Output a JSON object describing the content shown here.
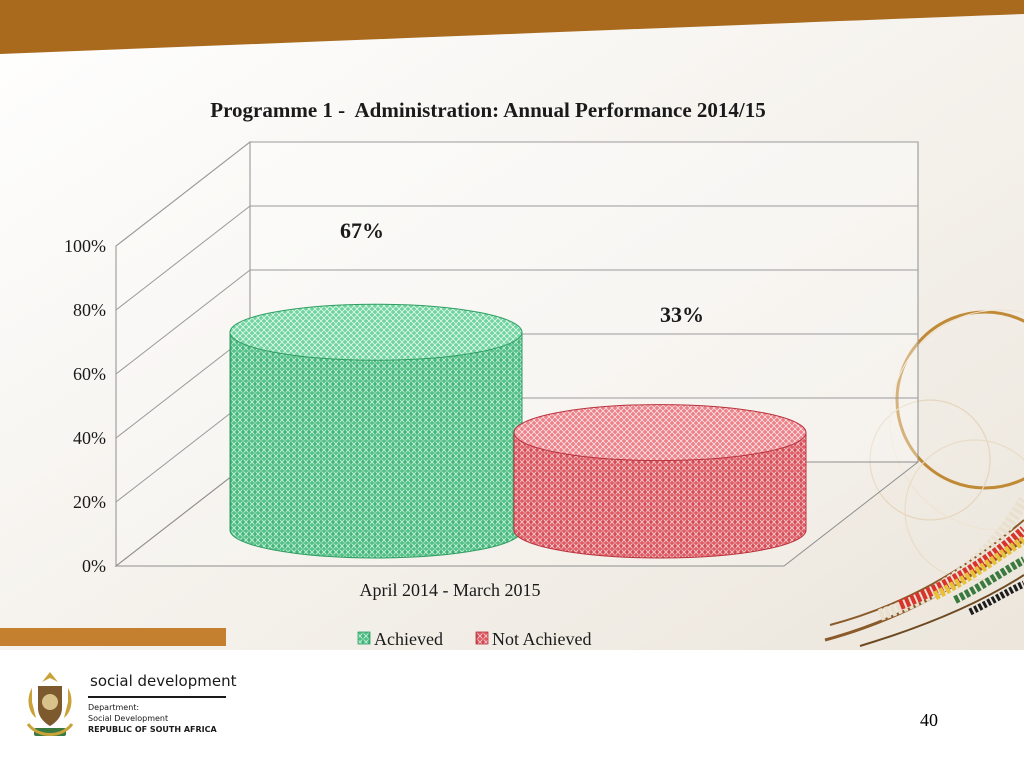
{
  "chart_data": {
    "type": "bar",
    "style": "3d-cylinder",
    "title": "Programme 1 -  Administration: Annual Performance 2014/15",
    "categories": [
      "April 2014 - March 2015"
    ],
    "series": [
      {
        "name": "Achieved",
        "values": [
          67
        ],
        "label": "67%",
        "color": "#3cb371"
      },
      {
        "name": "Not Achieved",
        "values": [
          33
        ],
        "label": "33%",
        "color": "#dc3c46"
      }
    ],
    "yticks": [
      "0%",
      "20%",
      "40%",
      "60%",
      "80%",
      "100%"
    ],
    "ylim": [
      0,
      100
    ],
    "grid": true,
    "legend": "bottom"
  },
  "colors": {
    "top_band": "#a96a1e",
    "accent_bar": "#c47f2f",
    "background": "#f6f3ee"
  },
  "footer": {
    "brand": "social development",
    "dept_line1": "Department:",
    "dept_line2": "Social Development",
    "dept_line3": "REPUBLIC OF SOUTH AFRICA",
    "page_number": "40"
  },
  "icons": [
    "coat-of-arms-icon",
    "beaded-necklace-decoration"
  ]
}
